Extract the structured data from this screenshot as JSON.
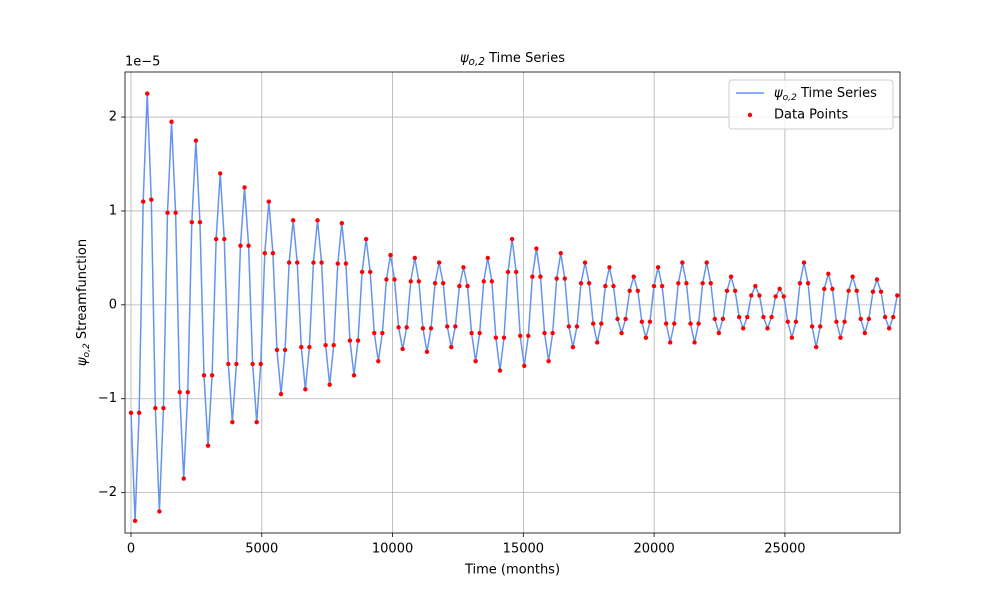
{
  "chart_data": {
    "type": "line",
    "title": {
      "symbol": "ψ",
      "sub": "o,2",
      "text": " Time Series"
    },
    "x_label": "Time (months)",
    "y_label": {
      "symbol": "ψ",
      "sub": "o,2",
      "text": " Streamfunction"
    },
    "y_offset_label": "1e−5",
    "xlim": [
      -230,
      29400
    ],
    "ylim": [
      -2.43,
      2.48
    ],
    "xticks": [
      0,
      5000,
      10000,
      15000,
      20000,
      25000
    ],
    "yticks": [
      -2,
      -1,
      0,
      1,
      2
    ],
    "grid": true,
    "legend": "upper right",
    "series": [
      {
        "name": {
          "symbol": "ψ",
          "sub": "o,2",
          "text": " Time Series"
        },
        "color": "#6495ed",
        "type": "line"
      },
      {
        "name": "Data Points",
        "color": "#ff0000",
        "type": "scatter"
      }
    ],
    "x": [
      0,
      155,
      310,
      465,
      620,
      775,
      930,
      1085,
      1240,
      1395,
      1550,
      1705,
      1860,
      2015,
      2170,
      2325,
      2480,
      2635,
      2790,
      2945,
      3100,
      3255,
      3410,
      3565,
      3720,
      3875,
      4030,
      4185,
      4340,
      4495,
      4650,
      4805,
      4960,
      5115,
      5270,
      5425,
      5580,
      5735,
      5890,
      6045,
      6200,
      6355,
      6510,
      6665,
      6820,
      6975,
      7130,
      7285,
      7440,
      7595,
      7750,
      7905,
      8060,
      8215,
      8370,
      8525,
      8680,
      8835,
      8990,
      9145,
      9300,
      9455,
      9610,
      9765,
      9920,
      10075,
      10230,
      10385,
      10540,
      10695,
      10850,
      11005,
      11160,
      11315,
      11470,
      11625,
      11780,
      11935,
      12090,
      12245,
      12400,
      12555,
      12710,
      12865,
      13020,
      13175,
      13330,
      13485,
      13640,
      13795,
      13950,
      14105,
      14260,
      14415,
      14570,
      14725,
      14880,
      15035,
      15190,
      15345,
      15500,
      15655,
      15810,
      15965,
      16120,
      16275,
      16430,
      16585,
      16740,
      16895,
      17050,
      17205,
      17360,
      17515,
      17670,
      17825,
      17980,
      18135,
      18290,
      18445,
      18600,
      18755,
      18910,
      19065,
      19220,
      19375,
      19530,
      19685,
      19840,
      19995,
      20150,
      20305,
      20460,
      20615,
      20770,
      20925,
      21080,
      21235,
      21390,
      21545,
      21700,
      21855,
      22010,
      22165,
      22320,
      22475,
      22630,
      22785,
      22940,
      23095,
      23250,
      23405,
      23560,
      23715,
      23870,
      24025,
      24180,
      24335,
      24490,
      24645,
      24800,
      24955,
      25110,
      25265,
      25420,
      25575,
      25730,
      25885,
      26040,
      26195,
      26350,
      26505,
      26660,
      26815,
      26970,
      27125,
      27280,
      27435,
      27590,
      27745,
      27900,
      28055,
      28210,
      28365,
      28520,
      28675,
      28830,
      28985,
      29140,
      29295
    ],
    "values": [
      -1.15,
      -2.3,
      -1.15,
      1.1,
      2.25,
      1.12,
      -1.1,
      -2.2,
      -1.1,
      0.98,
      1.95,
      0.98,
      -0.93,
      -1.85,
      -0.93,
      0.88,
      1.75,
      0.88,
      -0.75,
      -1.5,
      -0.75,
      0.7,
      1.4,
      0.7,
      -0.63,
      -1.25,
      -0.63,
      0.63,
      1.25,
      0.63,
      -0.63,
      -1.25,
      -0.63,
      0.55,
      1.1,
      0.55,
      -0.48,
      -0.95,
      -0.48,
      0.45,
      0.9,
      0.45,
      -0.45,
      -0.9,
      -0.45,
      0.45,
      0.9,
      0.45,
      -0.43,
      -0.85,
      -0.43,
      0.44,
      0.87,
      0.44,
      -0.38,
      -0.75,
      -0.38,
      0.35,
      0.7,
      0.35,
      -0.3,
      -0.6,
      -0.3,
      0.27,
      0.53,
      0.27,
      -0.24,
      -0.47,
      -0.24,
      0.25,
      0.5,
      0.25,
      -0.25,
      -0.5,
      -0.25,
      0.23,
      0.45,
      0.23,
      -0.23,
      -0.45,
      -0.23,
      0.2,
      0.4,
      0.2,
      -0.3,
      -0.6,
      -0.3,
      0.25,
      0.5,
      0.25,
      -0.35,
      -0.7,
      -0.35,
      0.35,
      0.7,
      0.35,
      -0.33,
      -0.65,
      -0.33,
      0.3,
      0.6,
      0.3,
      -0.3,
      -0.6,
      -0.3,
      0.28,
      0.55,
      0.28,
      -0.23,
      -0.45,
      -0.23,
      0.23,
      0.45,
      0.23,
      -0.2,
      -0.4,
      -0.2,
      0.2,
      0.4,
      0.2,
      -0.15,
      -0.3,
      -0.15,
      0.15,
      0.3,
      0.15,
      -0.18,
      -0.35,
      -0.18,
      0.2,
      0.4,
      0.2,
      -0.2,
      -0.4,
      -0.2,
      0.23,
      0.45,
      0.23,
      -0.2,
      -0.4,
      -0.2,
      0.23,
      0.45,
      0.23,
      -0.15,
      -0.3,
      -0.15,
      0.15,
      0.3,
      0.15,
      -0.13,
      -0.25,
      -0.13,
      0.1,
      0.2,
      0.1,
      -0.13,
      -0.25,
      -0.13,
      0.09,
      0.17,
      0.09,
      -0.18,
      -0.35,
      -0.18,
      0.23,
      0.45,
      0.23,
      -0.23,
      -0.45,
      -0.23,
      0.17,
      0.33,
      0.17,
      -0.18,
      -0.35,
      -0.18,
      0.15,
      0.3,
      0.15,
      -0.15,
      -0.3,
      -0.15,
      0.14,
      0.27,
      0.14,
      -0.13,
      -0.25,
      -0.13,
      0.1
    ]
  }
}
